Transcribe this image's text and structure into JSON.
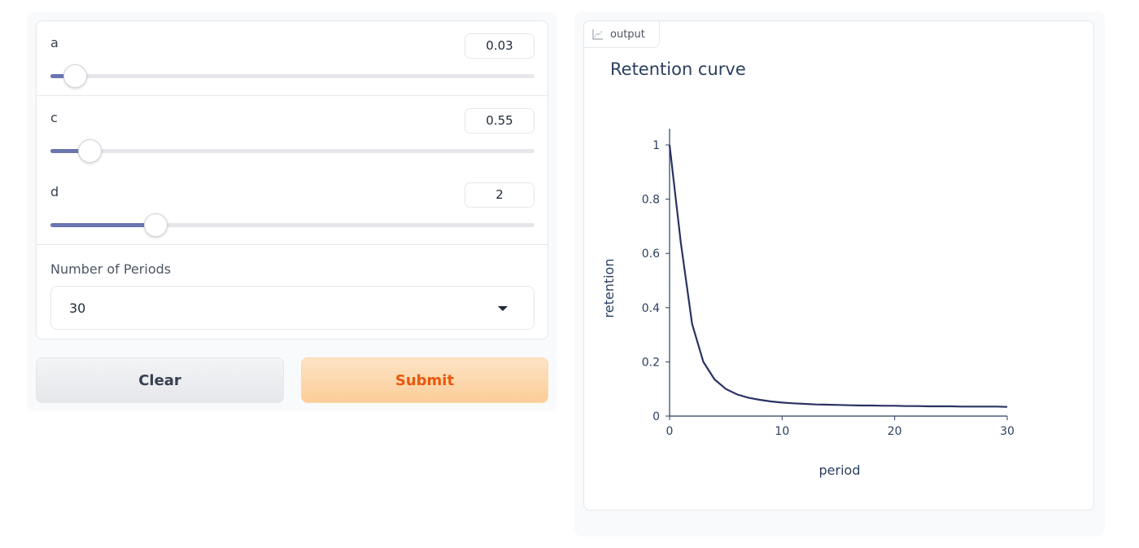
{
  "sliders": [
    {
      "label": "a",
      "value": "0.03",
      "fill_fraction": 0.05
    },
    {
      "label": "c",
      "value": "0.55",
      "fill_fraction": 0.08
    },
    {
      "label": "d",
      "value": "2",
      "fill_fraction": 0.216
    }
  ],
  "periods": {
    "label": "Number of Periods",
    "selected": "30"
  },
  "buttons": {
    "clear_label": "Clear",
    "submit_label": "Submit"
  },
  "output": {
    "tag_label": "output",
    "icon": "chart-icon"
  },
  "colors": {
    "accent": "#6b75b0",
    "submit_text": "#ea580c",
    "line": "#2a3263"
  },
  "chart_data": {
    "type": "line",
    "title": "Retention curve",
    "xlabel": "period",
    "ylabel": "retention",
    "xlim": [
      0,
      30
    ],
    "ylim": [
      0,
      1
    ],
    "xticks": [
      "0",
      "10",
      "20",
      "30"
    ],
    "yticks": [
      "0",
      "0.2",
      "0.4",
      "0.6",
      "0.8",
      "1"
    ],
    "x": [
      0,
      1,
      2,
      3,
      4,
      5,
      6,
      7,
      8,
      9,
      10,
      11,
      12,
      13,
      14,
      15,
      16,
      17,
      18,
      19,
      20,
      21,
      22,
      23,
      24,
      25,
      26,
      27,
      28,
      29,
      30
    ],
    "y": [
      1.0,
      0.64,
      0.34,
      0.2,
      0.135,
      0.1,
      0.08,
      0.068,
      0.06,
      0.054,
      0.05,
      0.047,
      0.045,
      0.043,
      0.042,
      0.041,
      0.04,
      0.039,
      0.039,
      0.038,
      0.038,
      0.037,
      0.037,
      0.036,
      0.036,
      0.036,
      0.035,
      0.035,
      0.035,
      0.035,
      0.034
    ]
  }
}
